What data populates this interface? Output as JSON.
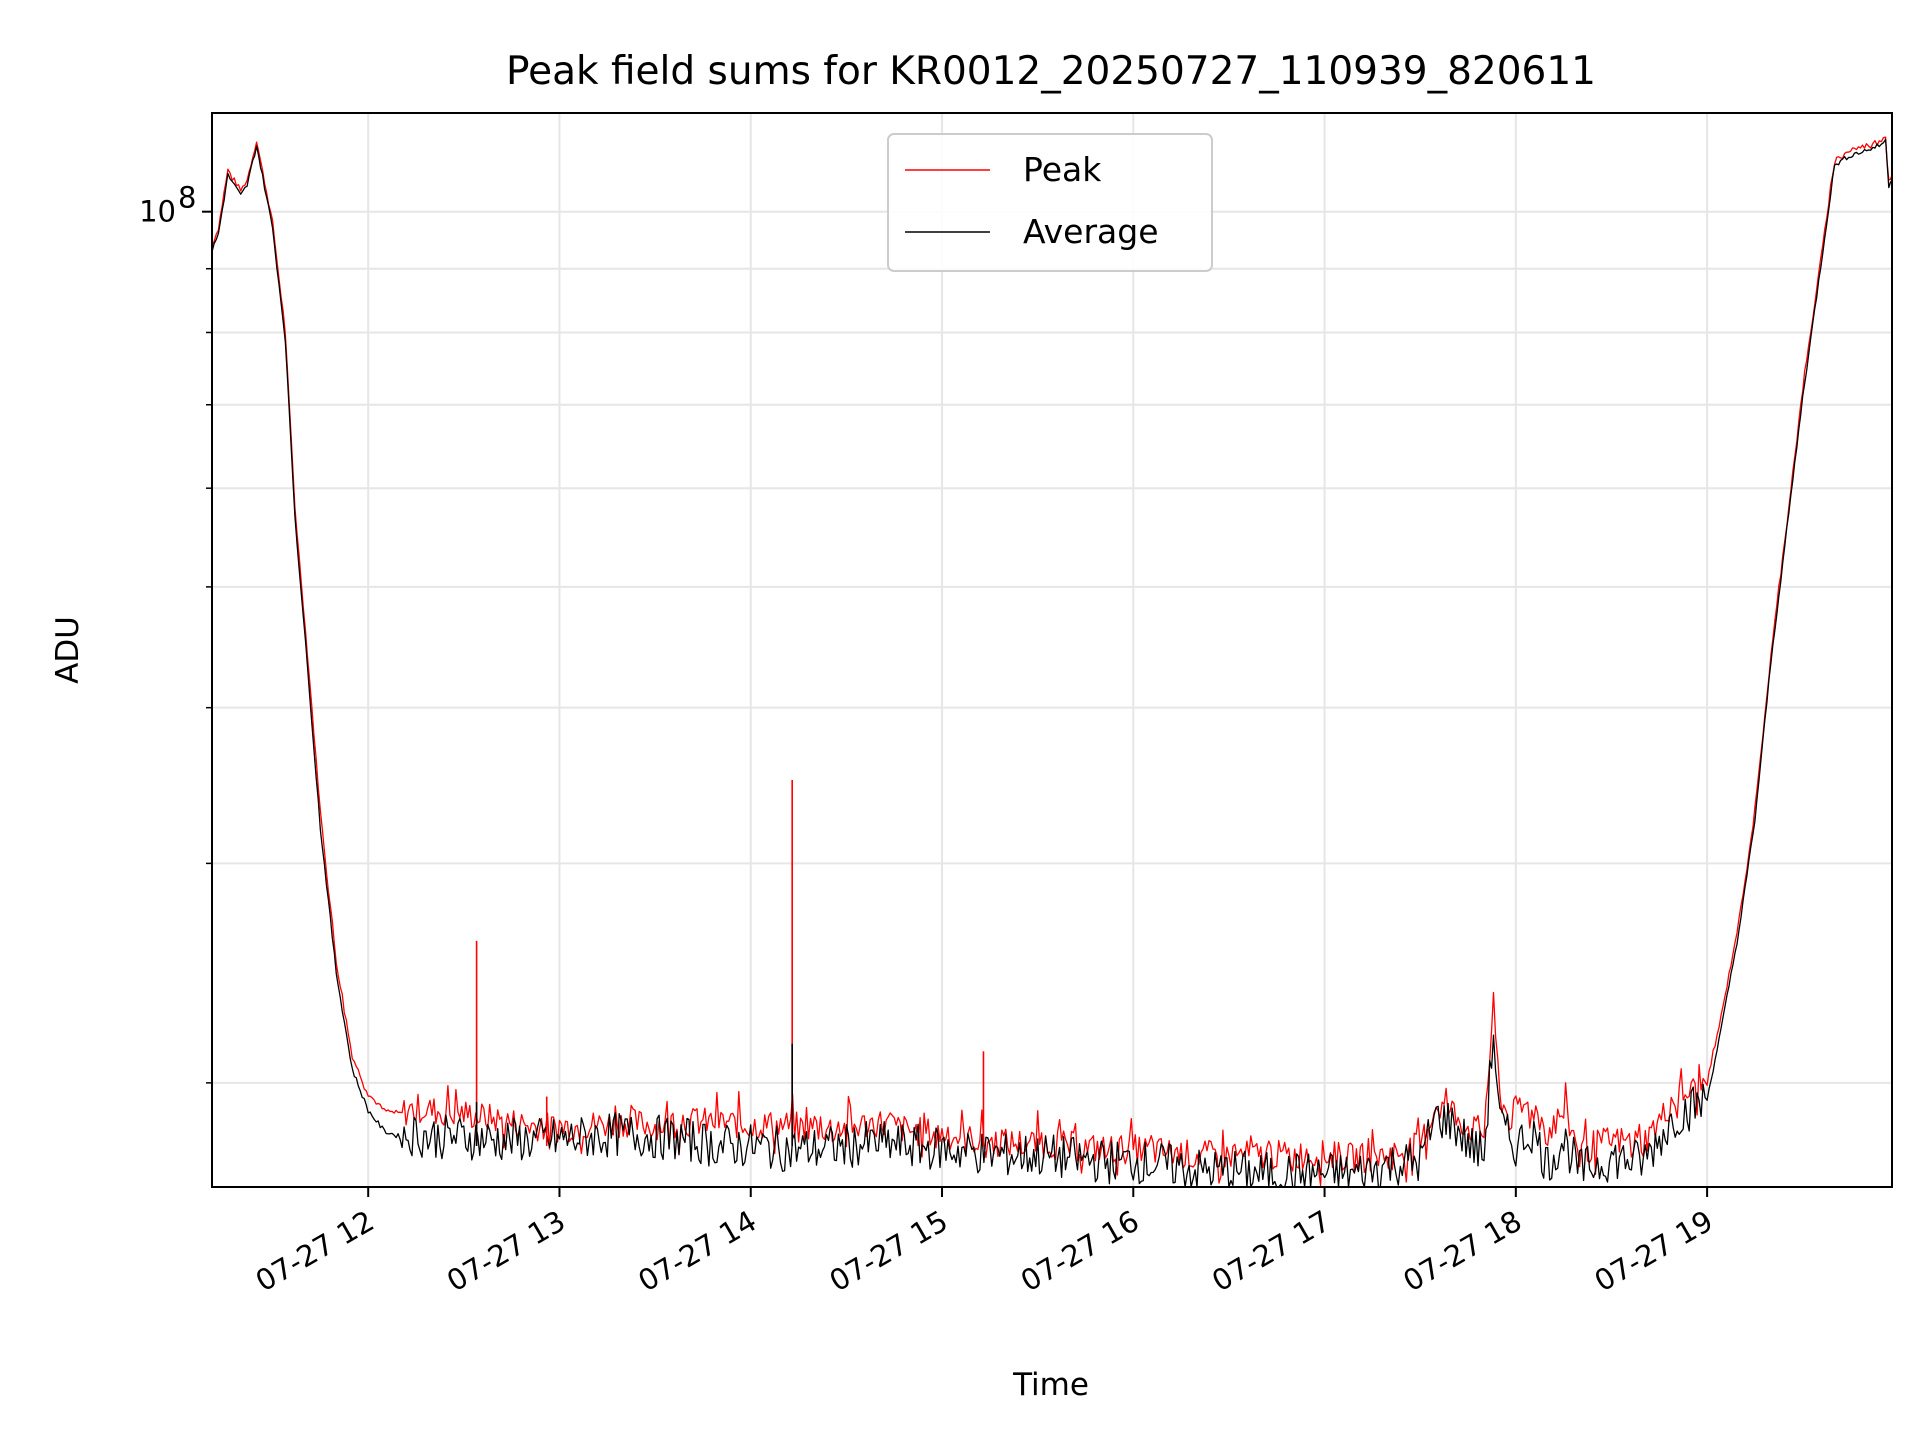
{
  "chart_data": {
    "type": "line",
    "title": "Peak field sums for KR0012_20250727_110939_820611",
    "xlabel": "Time",
    "ylabel": "ADU",
    "y_scale": "log",
    "ylim": [
      16500000,
      120000000
    ],
    "xlim": [
      "2025-07-27 11:11",
      "2025-07-27 19:58"
    ],
    "x_tick_labels": [
      {
        "value": "2025-07-27 12:00",
        "label": "07-27 12"
      },
      {
        "value": "2025-07-27 13:00",
        "label": "07-27 13"
      },
      {
        "value": "2025-07-27 14:00",
        "label": "07-27 14"
      },
      {
        "value": "2025-07-27 15:00",
        "label": "07-27 15"
      },
      {
        "value": "2025-07-27 16:00",
        "label": "07-27 16"
      },
      {
        "value": "2025-07-27 17:00",
        "label": "07-27 17"
      },
      {
        "value": "2025-07-27 18:00",
        "label": "07-27 18"
      },
      {
        "value": "2025-07-27 19:00",
        "label": "07-27 19"
      }
    ],
    "y_tick_labels": [
      {
        "value": 100000000,
        "label": "10^8"
      }
    ],
    "grid": true,
    "legend_position": "top-center",
    "x": [
      "11:11",
      "11:13",
      "11:16",
      "11:18",
      "11:20",
      "11:22",
      "11:25",
      "11:30",
      "11:34",
      "11:37",
      "11:41",
      "11:45",
      "11:50",
      "11:55",
      "12:00",
      "12:05",
      "12:10",
      "12:15",
      "12:20",
      "12:30",
      "12:40",
      "12:50",
      "13:00",
      "13:10",
      "13:20",
      "13:30",
      "13:40",
      "13:50",
      "14:00",
      "14:10",
      "14:20",
      "14:30",
      "14:40",
      "14:50",
      "15:00",
      "15:10",
      "15:20",
      "15:30",
      "15:40",
      "15:50",
      "16:00",
      "16:10",
      "16:20",
      "16:30",
      "16:40",
      "16:50",
      "17:00",
      "17:10",
      "17:20",
      "17:30",
      "17:35",
      "17:40",
      "17:45",
      "17:50",
      "17:53",
      "17:55",
      "17:58",
      "18:00",
      "18:05",
      "18:10",
      "18:15",
      "18:20",
      "18:30",
      "18:40",
      "18:50",
      "19:00",
      "19:05",
      "19:10",
      "19:15",
      "19:20",
      "19:30",
      "19:40",
      "19:45",
      "19:50",
      "19:54",
      "19:56",
      "19:57",
      "19:58"
    ],
    "series": [
      {
        "name": "Peak",
        "color": "#ff0000",
        "values": [
          94000000,
          97000000,
          108000000,
          106000000,
          104000000,
          106000000,
          114000000,
          98000000,
          80000000,
          58000000,
          44000000,
          33000000,
          25000000,
          21000000,
          19600000,
          19000000,
          18900000,
          19100000,
          19000000,
          18900000,
          18700000,
          18500000,
          18400000,
          18500000,
          18600000,
          18500000,
          18600000,
          18600000,
          18500000,
          18500000,
          18400000,
          18400000,
          18600000,
          18300000,
          18200000,
          18000000,
          17900000,
          17900000,
          17800000,
          17700000,
          17700000,
          17600000,
          17500000,
          17500000,
          17500000,
          17500000,
          17500000,
          17400000,
          17500000,
          17800000,
          19200000,
          19000000,
          18400000,
          18300000,
          23000000,
          19500000,
          18700000,
          19000000,
          19200000,
          18200000,
          19000000,
          17700000,
          18000000,
          17900000,
          19400000,
          20000000,
          23000000,
          27000000,
          33000000,
          44000000,
          72000000,
          110000000,
          112000000,
          113000000,
          114000000,
          115000000,
          106000000,
          107000000
        ]
      },
      {
        "name": "Average",
        "color": "#000000",
        "values": [
          93000000,
          96000000,
          107000000,
          105000000,
          103000000,
          105000000,
          113000000,
          97000000,
          79000000,
          57000000,
          43000000,
          32000000,
          24500000,
          20500000,
          19000000,
          18300000,
          18100000,
          18200000,
          18100000,
          18100000,
          18000000,
          18000000,
          18000000,
          18100000,
          18200000,
          18100000,
          18000000,
          17800000,
          17800000,
          17700000,
          17700000,
          17800000,
          17900000,
          17800000,
          17700000,
          17600000,
          17500000,
          17500000,
          17400000,
          17300000,
          17300000,
          17200000,
          17000000,
          17000000,
          16900000,
          16900000,
          16900000,
          16900000,
          17200000,
          17300000,
          18800000,
          18600000,
          17900000,
          17500000,
          22000000,
          18600000,
          18000000,
          17800000,
          18300000,
          17200000,
          18000000,
          17000000,
          17400000,
          17300000,
          18800000,
          19400000,
          22500000,
          26500000,
          32500000,
          43500000,
          71000000,
          109000000,
          111000000,
          112000000,
          113000000,
          114000000,
          105000000,
          106000000
        ]
      }
    ],
    "spikes": [
      {
        "series": "Peak",
        "x": "12:34",
        "value": 26000000
      },
      {
        "series": "Peak",
        "x": "12:56",
        "value": 19500000
      },
      {
        "series": "Peak",
        "x": "14:13",
        "value": 35000000
      },
      {
        "series": "Average",
        "x": "14:13",
        "value": 21500000
      },
      {
        "series": "Peak",
        "x": "15:13",
        "value": 21200000
      },
      {
        "series": "Average",
        "x": "12:34",
        "value": 19300000
      }
    ]
  }
}
